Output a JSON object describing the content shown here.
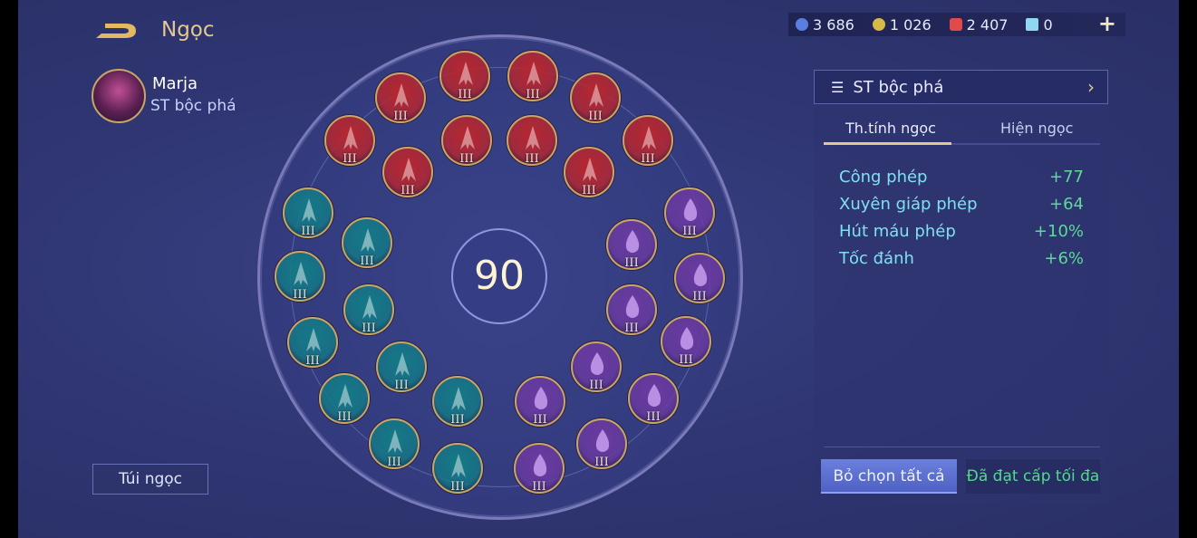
{
  "header": {
    "title": "Ngọc"
  },
  "hero": {
    "name": "Marja",
    "role": "ST bộc phá"
  },
  "currency": [
    {
      "icon": "blue-coin-icon",
      "value": "3 686",
      "color": "#5a7fe0"
    },
    {
      "icon": "gold-coin-icon",
      "value": "1 026",
      "color": "#d9b84a"
    },
    {
      "icon": "red-gem-icon",
      "value": "2 407",
      "color": "#e04a4a"
    },
    {
      "icon": "card-icon",
      "value": "0",
      "color": "#8fd8f0"
    }
  ],
  "add_label": "+",
  "level": "90",
  "gems": {
    "red": {
      "label": "III",
      "color": "#b8262e"
    },
    "teal": {
      "label": "III",
      "color": "#137a86"
    },
    "purple": {
      "label": "III",
      "color": "#6a3aa0"
    }
  },
  "bag_label": "Túi ngọc",
  "panel": {
    "preset": "ST bộc phá",
    "tabs": [
      "Th.tính ngọc",
      "Hiện ngọc"
    ],
    "stats": [
      {
        "name": "Công phép",
        "value": "+77"
      },
      {
        "name": "Xuyên giáp phép",
        "value": "+64"
      },
      {
        "name": "Hút máu phép",
        "value": "+10%"
      },
      {
        "name": "Tốc đánh",
        "value": "+6%"
      }
    ],
    "deselect_label": "Bỏ chọn tất cả",
    "max_label": "Đã đạt cấp tối đa"
  }
}
